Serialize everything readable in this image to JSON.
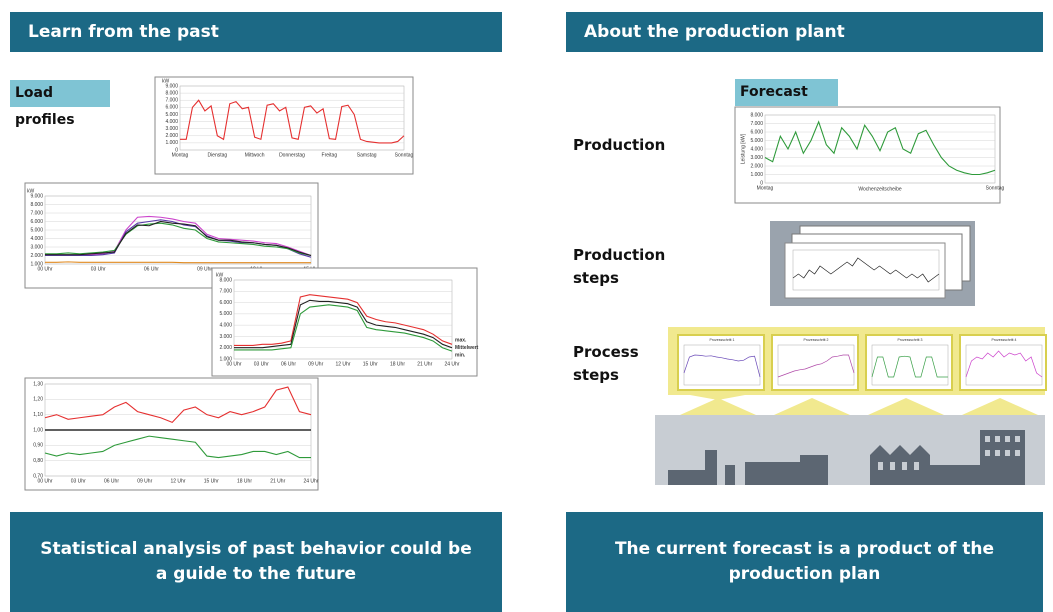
{
  "left_panel": {
    "title": "Learn from the past",
    "label": "Load profiles",
    "caption": "Statistical analysis of past behavior could be a guide to the future"
  },
  "right_panel": {
    "title": "About the production plant",
    "forecast_label": "Forecast",
    "rows": [
      "Production",
      "Production steps",
      "Process steps"
    ],
    "caption": "The current forecast is a product of the production plan"
  },
  "charts": {
    "c1": {
      "type": "line",
      "y_label": "kW",
      "ylim": [
        0,
        9000
      ],
      "yticks": [
        0,
        {
          "value": 1000,
          "label": "1.000"
        },
        {
          "value": 2000,
          "label": "2.000"
        },
        {
          "value": 3000,
          "label": "3.000"
        },
        {
          "value": 4000,
          "label": "4.000"
        },
        {
          "value": 5000,
          "label": "5.000"
        },
        {
          "value": 6000,
          "label": "6.000"
        },
        {
          "value": 7000,
          "label": "7.000"
        },
        {
          "value": 8000,
          "label": "8.000"
        },
        {
          "value": 9000,
          "label": "9.000"
        }
      ],
      "x_labels": [
        "Montag",
        "Dienstag",
        "Mittwoch",
        "Donnerstag",
        "Freitag",
        "Samstag",
        "Sonntag"
      ],
      "series": [
        {
          "color": "#e53030",
          "values": [
            1500,
            1500,
            6000,
            7000,
            5500,
            6200,
            2000,
            1500,
            6500,
            6800,
            5800,
            6000,
            1800,
            1500,
            6300,
            6500,
            5500,
            6000,
            1700,
            1500,
            6000,
            6200,
            5200,
            5800,
            1600,
            1500,
            6100,
            6300,
            5000,
            1500,
            1200,
            1100,
            1000,
            1000,
            1000,
            1200,
            2000
          ]
        }
      ]
    },
    "c2": {
      "type": "line",
      "y_label": "kW",
      "ylim": [
        1000,
        9000
      ],
      "yticks": [
        {
          "value": 1000,
          "label": "1.000"
        },
        {
          "value": 2000,
          "label": "2.000"
        },
        {
          "value": 3000,
          "label": "3.000"
        },
        {
          "value": 4000,
          "label": "4.000"
        },
        {
          "value": 5000,
          "label": "5.000"
        },
        {
          "value": 6000,
          "label": "6.000"
        },
        {
          "value": 7000,
          "label": "7.000"
        },
        {
          "value": 8000,
          "label": "8.000"
        },
        {
          "value": 9000,
          "label": "9.000"
        }
      ],
      "x_labels": [
        "00 Uhr",
        "03 Uhr",
        "06 Uhr",
        "09 Uhr",
        "12 Uhr",
        "15 Uhr"
      ],
      "series": [
        {
          "color": "#e08a20",
          "values": [
            1200,
            1200,
            1250,
            1200,
            1200,
            1200,
            1200,
            1200,
            1200,
            1200,
            1200,
            1200,
            1150,
            1150,
            1150,
            1150,
            1150,
            1150,
            1150,
            1150,
            1150,
            1150,
            1150,
            1150
          ]
        },
        {
          "color": "#cc44cc",
          "values": [
            2000,
            2000,
            2000,
            2000,
            2100,
            2200,
            2500,
            5000,
            6500,
            6600,
            6500,
            6300,
            6000,
            5800,
            4500,
            4000,
            3900,
            3800,
            3700,
            3500,
            3400,
            3000,
            2500,
            2000
          ]
        },
        {
          "color": "#5a3aa8",
          "values": [
            2000,
            2000,
            2000,
            2000,
            2000,
            2100,
            2300,
            4800,
            5800,
            6000,
            6200,
            6000,
            5600,
            5400,
            4300,
            3800,
            3700,
            3500,
            3500,
            3300,
            3200,
            2800,
            2200,
            1800
          ]
        },
        {
          "color": "#2e9a3a",
          "values": [
            2200,
            2200,
            2300,
            2200,
            2300,
            2400,
            2600,
            4500,
            5500,
            5700,
            5800,
            5600,
            5200,
            5000,
            4000,
            3600,
            3500,
            3400,
            3300,
            3100,
            3000,
            2800,
            2300,
            2000
          ]
        },
        {
          "color": "#222222",
          "values": [
            2100,
            2100,
            2100,
            2100,
            2200,
            2300,
            2400,
            4600,
            5600,
            5500,
            6000,
            5800,
            5700,
            5500,
            4200,
            3800,
            3800,
            3600,
            3500,
            3300,
            3200,
            2900,
            2400,
            2000
          ]
        }
      ]
    },
    "c3": {
      "type": "line",
      "y_label": "kW",
      "ylim": [
        1000,
        8000
      ],
      "yticks": [
        {
          "value": 1000,
          "label": "1.000"
        },
        {
          "value": 2000,
          "label": "2.000"
        },
        {
          "value": 3000,
          "label": "3.000"
        },
        {
          "value": 4000,
          "label": "4.000"
        },
        {
          "value": 5000,
          "label": "5.000"
        },
        {
          "value": 6000,
          "label": "6.000"
        },
        {
          "value": 7000,
          "label": "7.000"
        },
        {
          "value": 8000,
          "label": "8.000"
        }
      ],
      "x_labels": [
        "00 Uhr",
        "03 Uhr",
        "06 Uhr",
        "09 Uhr",
        "12 Uhr",
        "15 Uhr",
        "18 Uhr",
        "21 Uhr",
        "24 Uhr"
      ],
      "series": [
        {
          "name": "max.",
          "color": "#e53030",
          "values": [
            2200,
            2200,
            2200,
            2300,
            2300,
            2400,
            2600,
            6500,
            6700,
            6600,
            6500,
            6400,
            6300,
            6000,
            4800,
            4500,
            4300,
            4200,
            4000,
            3800,
            3600,
            3200,
            2600,
            2300
          ]
        },
        {
          "name": "Mittelwert",
          "color": "#222222",
          "values": [
            2000,
            2000,
            2000,
            2000,
            2100,
            2200,
            2300,
            5800,
            6200,
            6100,
            6100,
            6000,
            5900,
            5600,
            4300,
            4000,
            3900,
            3800,
            3600,
            3400,
            3200,
            2900,
            2300,
            2000
          ]
        },
        {
          "name": "min.",
          "color": "#2e9a3a",
          "values": [
            1800,
            1800,
            1800,
            1800,
            1800,
            1900,
            2000,
            5000,
            5600,
            5700,
            5800,
            5700,
            5600,
            5300,
            3800,
            3600,
            3500,
            3400,
            3300,
            3100,
            2900,
            2600,
            2000,
            1700
          ]
        }
      ]
    },
    "c4": {
      "type": "line",
      "ylim": [
        0.7,
        1.3
      ],
      "reference": 1,
      "yticks": [
        {
          "value": 0.7,
          "label": "0,70"
        },
        {
          "value": 0.8,
          "label": "0,80"
        },
        {
          "value": 0.9,
          "label": "0,90"
        },
        {
          "value": 1,
          "label": "1,00"
        },
        {
          "value": 1.1,
          "label": "1,10"
        },
        {
          "value": 1.2,
          "label": "1,20"
        },
        {
          "value": 1.3,
          "label": "1,30"
        }
      ],
      "x_labels": [
        "00 Uhr",
        "03 Uhr",
        "06 Uhr",
        "09 Uhr",
        "12 Uhr",
        "15 Uhr",
        "18 Uhr",
        "21 Uhr",
        "24 Uhr"
      ],
      "series": [
        {
          "color": "#e53030",
          "values": [
            1.08,
            1.1,
            1.07,
            1.08,
            1.09,
            1.1,
            1.15,
            1.18,
            1.12,
            1.1,
            1.08,
            1.05,
            1.13,
            1.15,
            1.1,
            1.08,
            1.12,
            1.1,
            1.12,
            1.15,
            1.26,
            1.28,
            1.12,
            1.1
          ]
        },
        {
          "color": "#2e9a3a",
          "values": [
            0.85,
            0.83,
            0.85,
            0.84,
            0.85,
            0.86,
            0.9,
            0.92,
            0.94,
            0.96,
            0.95,
            0.94,
            0.93,
            0.92,
            0.83,
            0.82,
            0.83,
            0.84,
            0.86,
            0.86,
            0.84,
            0.86,
            0.82,
            0.82
          ]
        }
      ]
    },
    "fc": {
      "type": "line",
      "y_label": "Leistung [kW]",
      "x_title": "Wochenzeitscheibe",
      "ylim": [
        0,
        8000
      ],
      "yticks": [
        0,
        {
          "value": 1000,
          "label": "1.000"
        },
        {
          "value": 2000,
          "label": "2.000"
        },
        {
          "value": 3000,
          "label": "3.000"
        },
        {
          "value": 4000,
          "label": "4.000"
        },
        {
          "value": 5000,
          "label": "5.000"
        },
        {
          "value": 6000,
          "label": "6.000"
        },
        {
          "value": 7000,
          "label": "7.000"
        },
        {
          "value": 8000,
          "label": "8.000"
        }
      ],
      "x_labels": [
        "Montag",
        "Sonntag"
      ],
      "series": [
        {
          "color": "#2e9a3a",
          "values": [
            3000,
            2500,
            5500,
            4000,
            6000,
            3500,
            5000,
            7200,
            4500,
            3500,
            6500,
            5500,
            4000,
            6800,
            5500,
            3800,
            6000,
            6500,
            4000,
            3500,
            5800,
            6200,
            4500,
            3000,
            2000,
            1500,
            1200,
            1000,
            1000,
            1200,
            1500
          ]
        }
      ]
    },
    "ps": {
      "type": "line",
      "ylim": [
        0,
        10
      ],
      "series": [
        {
          "color": "#222222",
          "values": [
            3,
            4,
            3,
            5,
            4,
            6,
            5,
            4,
            5,
            6,
            7,
            6,
            8,
            7,
            6,
            5,
            6,
            5,
            4,
            5,
            4,
            3,
            4,
            3,
            4,
            2,
            3,
            4
          ]
        }
      ]
    },
    "p1": {
      "type": "line",
      "title": "Prozessschritt 1",
      "ylim": [
        0,
        10
      ],
      "series": [
        {
          "color": "#6a4ab8",
          "values": [
            3,
            7,
            7.5,
            7.4,
            7.2,
            7.3,
            7,
            6.8,
            6.5,
            6.3,
            6,
            6.2,
            7,
            7.2,
            2
          ]
        }
      ]
    },
    "p2": {
      "type": "line",
      "title": "Prozessschritt 2",
      "ylim": [
        0,
        10
      ],
      "series": [
        {
          "color": "#b04aa8",
          "values": [
            2,
            2.5,
            3,
            3.5,
            3.8,
            4,
            4.5,
            5,
            5.3,
            6,
            7,
            7.2,
            7.5,
            7.5,
            3
          ]
        }
      ]
    },
    "p3": {
      "type": "line",
      "title": "Prozessschritt 3",
      "ylim": [
        0,
        10
      ],
      "series": [
        {
          "color": "#3aa048",
          "values": [
            2,
            7,
            7,
            2,
            2,
            7,
            7.2,
            7,
            2,
            2,
            7,
            7,
            2,
            2,
            2
          ]
        }
      ]
    },
    "p4": {
      "type": "line",
      "title": "Prozessschritt 4",
      "ylim": [
        0,
        10
      ],
      "series": [
        {
          "color": "#cc44cc",
          "values": [
            2,
            6,
            7,
            6.5,
            8,
            7,
            8.5,
            7,
            8,
            7.5,
            8,
            6,
            7,
            3,
            2
          ]
        }
      ]
    }
  }
}
